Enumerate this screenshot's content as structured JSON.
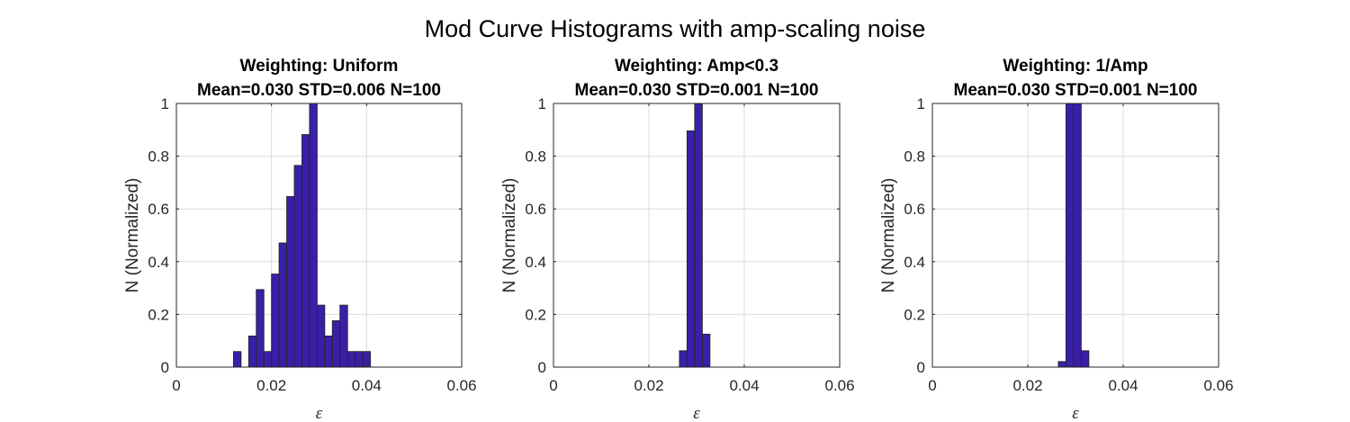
{
  "figure": {
    "title": "Mod Curve Histograms with amp-scaling noise"
  },
  "chart_data": [
    {
      "type": "bar",
      "title": "Weighting: Uniform",
      "subtitle": "Mean=0.030 STD=0.006 N=100",
      "xlabel": "ε",
      "ylabel": "N (Normalized)",
      "xlim": [
        0,
        0.06
      ],
      "ylim": [
        0,
        1
      ],
      "xticks": [
        "0",
        "0.02",
        "0.04",
        "0.06"
      ],
      "yticks": [
        "0",
        "0.2",
        "0.4",
        "0.6",
        "0.8",
        "1"
      ],
      "grid": true,
      "bin_width": 0.0016,
      "bins_start": [
        0.0104,
        0.012,
        0.0136,
        0.0152,
        0.0168,
        0.0184,
        0.02,
        0.0216,
        0.0232,
        0.0248,
        0.0264,
        0.028,
        0.0296,
        0.0312,
        0.0328,
        0.0344,
        0.036,
        0.0376,
        0.0392,
        0.0408,
        0.0424,
        0.044,
        0.0456,
        0.0472,
        0.0488,
        0.0504
      ],
      "values": [
        0,
        0.059,
        0,
        0.118,
        0.294,
        0.059,
        0.353,
        0.471,
        0.647,
        0.765,
        0.882,
        1.0,
        0.235,
        0.118,
        0.176,
        0.235,
        0.059,
        0.059,
        0.059,
        0,
        0,
        0,
        0,
        0,
        0,
        0
      ]
    },
    {
      "type": "bar",
      "title": "Weighting: Amp<0.3",
      "subtitle": "Mean=0.030 STD=0.001 N=100",
      "xlabel": "ε",
      "ylabel": "N (Normalized)",
      "xlim": [
        0,
        0.06
      ],
      "ylim": [
        0,
        1
      ],
      "xticks": [
        "0",
        "0.02",
        "0.04",
        "0.06"
      ],
      "yticks": [
        "0",
        "0.2",
        "0.4",
        "0.6",
        "0.8",
        "1"
      ],
      "grid": true,
      "bin_width": 0.0016,
      "bins_start": [
        0.0104,
        0.012,
        0.0136,
        0.0152,
        0.0168,
        0.0184,
        0.02,
        0.0216,
        0.0232,
        0.0248,
        0.0264,
        0.028,
        0.0296,
        0.0312,
        0.0328,
        0.0344,
        0.036,
        0.0376,
        0.0392,
        0.0408,
        0.0424,
        0.044,
        0.0456,
        0.0472,
        0.0488,
        0.0504
      ],
      "values": [
        0,
        0,
        0,
        0,
        0,
        0,
        0,
        0,
        0,
        0,
        0.062,
        0.896,
        1.0,
        0.125,
        0,
        0,
        0,
        0,
        0,
        0,
        0,
        0,
        0,
        0,
        0,
        0
      ]
    },
    {
      "type": "bar",
      "title": "Weighting: 1/Amp",
      "subtitle": "Mean=0.030 STD=0.001 N=100",
      "xlabel": "ε",
      "ylabel": "N (Normalized)",
      "xlim": [
        0,
        0.06
      ],
      "ylim": [
        0,
        1
      ],
      "xticks": [
        "0",
        "0.02",
        "0.04",
        "0.06"
      ],
      "yticks": [
        "0",
        "0.2",
        "0.4",
        "0.6",
        "0.8",
        "1"
      ],
      "grid": true,
      "bin_width": 0.0016,
      "bins_start": [
        0.0104,
        0.012,
        0.0136,
        0.0152,
        0.0168,
        0.0184,
        0.02,
        0.0216,
        0.0232,
        0.0248,
        0.0264,
        0.028,
        0.0296,
        0.0312,
        0.0328,
        0.0344,
        0.036,
        0.0376,
        0.0392,
        0.0408,
        0.0424,
        0.044,
        0.0456,
        0.0472,
        0.0488,
        0.0504
      ],
      "values": [
        0,
        0,
        0,
        0,
        0,
        0,
        0,
        0,
        0,
        0,
        0.021,
        1.0,
        1.0,
        0.062,
        0,
        0,
        0,
        0,
        0,
        0,
        0,
        0,
        0,
        0,
        0,
        0
      ]
    }
  ]
}
